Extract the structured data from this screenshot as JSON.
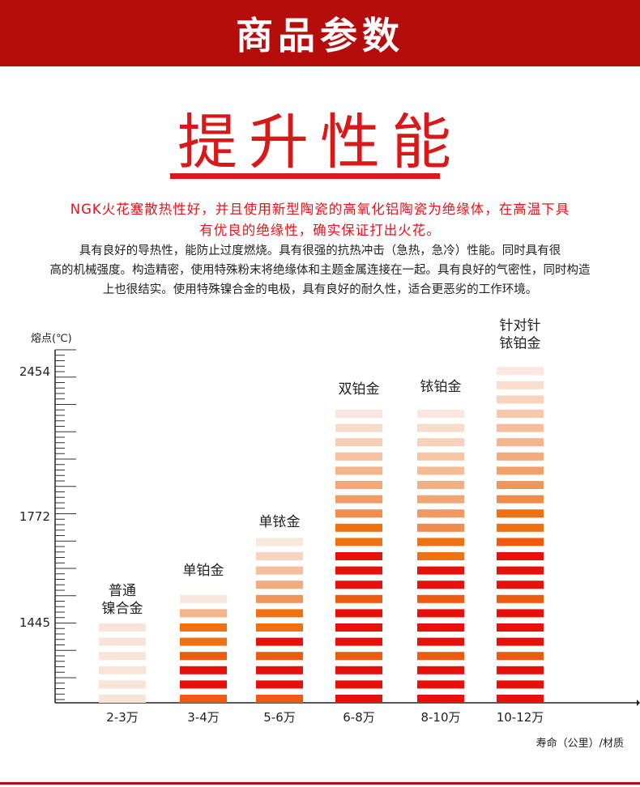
{
  "header": {
    "title": "商品参数"
  },
  "section": {
    "title": "提升性能"
  },
  "intro": {
    "lead_lines": [
      "NGK火花塞散热性好，并且使用新型陶瓷的高氧化铝陶瓷为绝缘体，在高温下具",
      "有优良的绝缘性，确实保证打出火花。"
    ],
    "body_lines": [
      "具有良好的导热性，能防止过度燃烧。具有很强的抗热冲击（急热，急冷）性能。同时具有很",
      "高的机械强度。构造精密，使用特殊粉末将绝缘体和主题金属连接在一起。具有良好的气密性，同时构造",
      "上也很结实。使用特殊镍合金的电极，具有良好的耐久性，适合更恶劣的工作环境。"
    ]
  },
  "colors": {
    "brand": "#b50c0c",
    "accent": "#d9181a",
    "hot": "#e8100a",
    "orange": "#ee7214",
    "pale": "#f8dccb"
  },
  "chart_data": {
    "type": "bar",
    "ylabel": "熔点(℃)",
    "xlabel": "寿命（公里）/材质",
    "yticks": [
      1445,
      1772,
      2454
    ],
    "ylim": [
      1200,
      2500
    ],
    "categories": [
      "2-3万",
      "3-4万",
      "5-6万",
      "6-8万",
      "8-10万",
      "10-12万"
    ],
    "materials": [
      [
        "普通",
        "镍合金"
      ],
      [
        "单铂金"
      ],
      [
        "单铱金"
      ],
      [
        "双铂金"
      ],
      [
        "铱铂金"
      ],
      [
        "针对针",
        "铱铂金"
      ]
    ],
    "values": [
      1445,
      1562,
      1712,
      2305,
      2317,
      2500
    ]
  }
}
